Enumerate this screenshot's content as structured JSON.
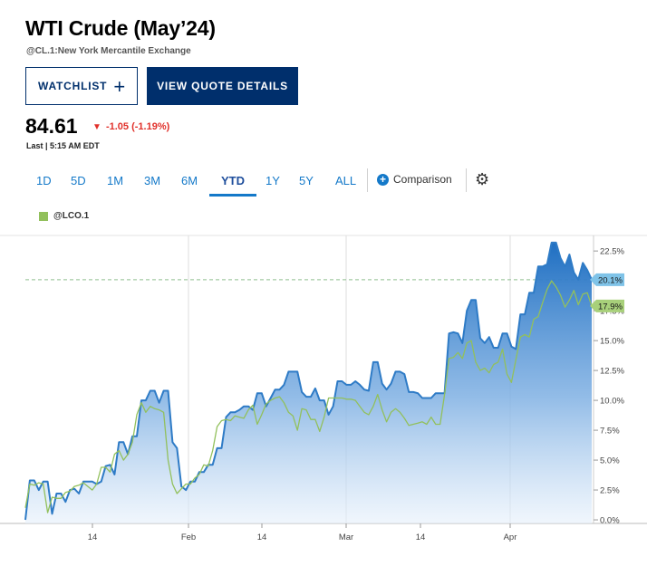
{
  "header": {
    "title": "WTI Crude (May’24)",
    "subtitle": "@CL.1:New York Mercantile Exchange"
  },
  "buttons": {
    "watchlist": "WATCHLIST",
    "watchlist_icon": "+",
    "quote_details": "VIEW QUOTE DETAILS"
  },
  "quote": {
    "price": "84.61",
    "change": "-1.05 (-1.19%)",
    "change_icon": "▼",
    "last": "Last | 5:15 AM EDT"
  },
  "ranges": {
    "tabs": [
      "1D",
      "5D",
      "1M",
      "3M",
      "6M",
      "YTD",
      "1Y",
      "5Y",
      "ALL"
    ],
    "active": "YTD",
    "comparison_label": "Comparison",
    "comparison_icon": "+",
    "settings_icon": "⚙"
  },
  "colors": {
    "brand": "#002F6C",
    "accent": "#1479C9",
    "down": "#E1302A",
    "primary_series": "#2E7BC6",
    "comparison_series": "#92C05C"
  },
  "chart_data": {
    "type": "area",
    "x_tick_labels": [
      "14",
      "Feb",
      "14",
      "Mar",
      "14",
      "Apr"
    ],
    "y_tick_labels": [
      "22.5%",
      "20.0%",
      "17.5%",
      "15.0%",
      "12.5%",
      "10.0%",
      "7.5%",
      "5.0%",
      "2.5%",
      "0.0%"
    ],
    "ylim": [
      -0.3,
      23.8
    ],
    "y_ticks": [
      22.5,
      20.0,
      17.5,
      15.0,
      12.5,
      10.0,
      7.5,
      5.0,
      2.5,
      0.0
    ],
    "reference_line": 20.1,
    "series": [
      {
        "values": [
          0.0,
          3.3,
          3.3,
          2.5,
          3.2,
          3.2,
          0.5,
          2.2,
          2.2,
          1.5,
          2.5,
          2.6,
          2.2,
          3.2,
          3.2,
          3.2,
          3.0,
          3.2,
          4.5,
          4.6,
          3.8,
          6.5,
          6.5,
          5.5,
          7.0,
          7.0,
          10.0,
          10.0,
          10.8,
          10.8,
          9.8,
          10.8,
          10.8,
          6.5,
          6.0,
          2.8,
          2.5,
          3.2,
          3.2,
          4.0,
          4.0,
          4.6,
          4.6,
          6.0,
          6.0,
          8.6,
          9.0,
          9.0,
          9.2,
          9.5,
          9.5,
          9.2,
          10.6,
          10.6,
          9.5,
          10.2,
          10.9,
          10.9,
          11.3,
          12.4,
          12.4,
          12.4,
          10.7,
          10.3,
          10.3,
          11.0,
          10.0,
          10.0,
          8.8,
          9.5,
          11.6,
          11.6,
          11.3,
          11.3,
          11.6,
          11.3,
          10.9,
          10.8,
          13.2,
          13.2,
          11.4,
          10.9,
          11.4,
          12.4,
          12.4,
          12.2,
          10.7,
          10.7,
          10.6,
          10.2,
          10.2,
          10.2,
          10.6,
          10.6,
          10.6,
          15.6,
          15.7,
          15.6,
          14.8,
          17.5,
          18.4,
          18.4,
          15.2,
          14.8,
          15.3,
          14.4,
          14.4,
          15.6,
          15.6,
          14.5,
          14.3,
          17.2,
          17.2,
          19.0,
          19.0,
          21.2,
          21.2,
          21.4,
          23.2,
          23.2,
          21.9,
          21.2,
          22.2,
          20.7,
          20.1,
          21.5,
          20.9,
          20.1
        ]
      },
      {
        "name": "@LCO.1",
        "values": [
          1.0,
          3.0,
          2.9,
          3.1,
          3.0,
          0.6,
          1.9,
          1.8,
          1.8,
          2.3,
          2.4,
          2.8,
          2.9,
          3.1,
          2.8,
          2.5,
          3.0,
          4.4,
          4.4,
          4.0,
          5.5,
          5.8,
          5.0,
          5.5,
          6.5,
          8.8,
          9.8,
          9.0,
          9.5,
          9.3,
          9.2,
          9.0,
          5.0,
          3.0,
          2.2,
          2.6,
          3.0,
          3.0,
          3.5,
          3.8,
          4.6,
          4.5,
          5.8,
          7.8,
          8.3,
          8.4,
          8.3,
          8.7,
          8.6,
          8.5,
          9.2,
          9.6,
          8.0,
          8.8,
          9.7,
          10.0,
          10.2,
          10.3,
          9.8,
          9.0,
          8.7,
          7.5,
          9.3,
          9.2,
          8.4,
          8.4,
          7.4,
          8.6,
          10.2,
          10.2,
          10.2,
          10.2,
          10.1,
          10.1,
          10.0,
          9.5,
          9.0,
          8.8,
          9.5,
          10.5,
          9.2,
          8.2,
          9.0,
          9.3,
          9.0,
          8.5,
          7.9,
          8.0,
          8.1,
          8.2,
          8.0,
          8.6,
          8.0,
          8.0,
          10.5,
          13.5,
          13.6,
          14.0,
          13.5,
          14.8,
          15.0,
          13.2,
          12.5,
          12.7,
          12.3,
          13.0,
          13.2,
          14.3,
          12.2,
          11.5,
          13.4,
          15.3,
          15.5,
          15.3,
          16.8,
          17.0,
          18.2,
          19.3,
          20.0,
          19.5,
          18.8,
          17.8,
          18.4,
          19.2,
          18.0,
          18.9,
          19.0,
          17.9
        ]
      }
    ],
    "end_labels": [
      "20.1%",
      "17.9%"
    ]
  }
}
